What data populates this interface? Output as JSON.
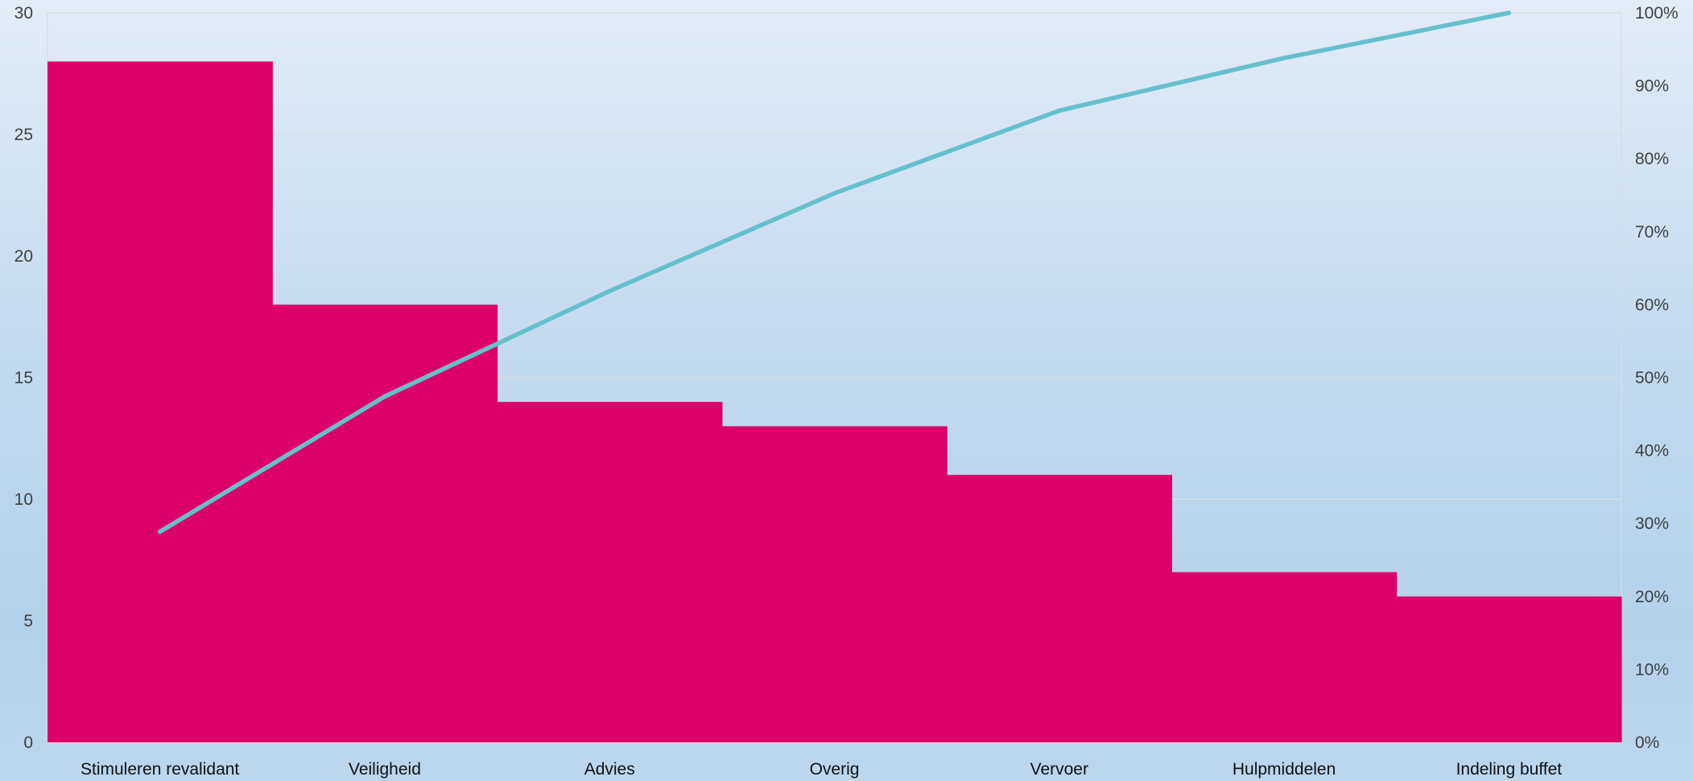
{
  "chart_data": {
    "type": "bar",
    "subtype": "pareto",
    "categories": [
      "Stimuleren revalidant",
      "Veiligheid",
      "Advies",
      "Overig",
      "Vervoer",
      "Hulpmiddelen",
      "Indeling buffet"
    ],
    "series": [
      {
        "kind": "bar",
        "axis": "left",
        "values": [
          28,
          18,
          14,
          13,
          11,
          7,
          6
        ],
        "color": "#dc006b"
      },
      {
        "kind": "line",
        "axis": "right",
        "values": [
          0.2887,
          0.4742,
          0.6186,
          0.7526,
          0.866,
          0.9381,
          1.0
        ],
        "color": "#66c0cc"
      }
    ],
    "left_axis": {
      "min": 0,
      "max": 30,
      "ticks": [
        "0",
        "5",
        "10",
        "15",
        "20",
        "25",
        "30"
      ]
    },
    "right_axis": {
      "min": 0,
      "max": 1,
      "ticks": [
        "0%",
        "10%",
        "20%",
        "30%",
        "40%",
        "50%",
        "60%",
        "70%",
        "80%",
        "90%",
        "100%"
      ]
    },
    "grid": true,
    "legend": "none",
    "title": ""
  }
}
